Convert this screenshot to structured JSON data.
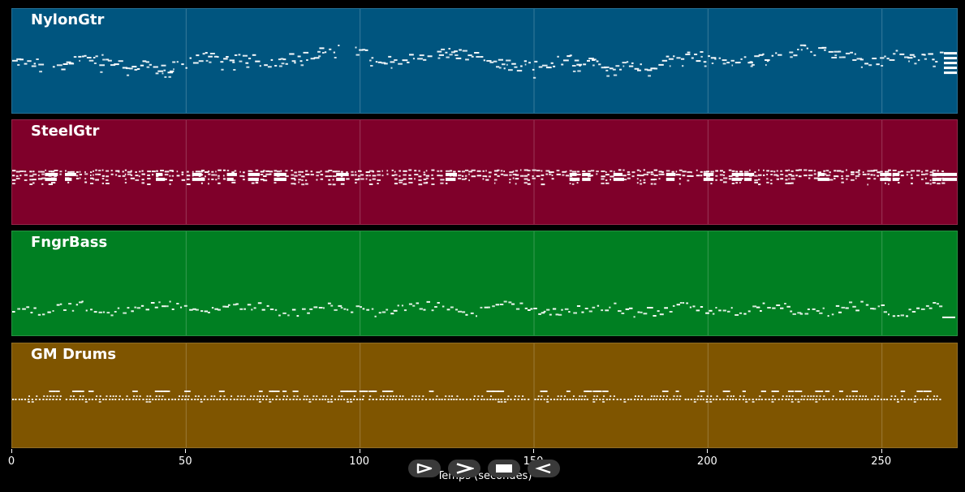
{
  "tracks": [
    {
      "name": "NylonGtr",
      "color": "#00557f",
      "pattern": "wavy-melody",
      "base_pitch": 0.47
    },
    {
      "name": "SteelGtr",
      "color": "#7f002a",
      "pattern": "dense-chords",
      "base_pitch": 0.53
    },
    {
      "name": "FngrBass",
      "color": "#007f22",
      "pattern": "bass-line",
      "base_pitch": 0.73
    },
    {
      "name": "GM Drums",
      "color": "#7f5500",
      "pattern": "drum-rows",
      "base_pitch": 0.5
    }
  ],
  "axis": {
    "label": "Temps (secondes)",
    "range": [
      0,
      272
    ],
    "ticks": [
      {
        "value": 0,
        "label": "0"
      },
      {
        "value": 50,
        "label": "50"
      },
      {
        "value": 100,
        "label": "100"
      },
      {
        "value": 150,
        "label": "150"
      },
      {
        "value": 200,
        "label": "200"
      },
      {
        "value": 250,
        "label": "250"
      }
    ],
    "grid": true
  },
  "transport": [
    {
      "id": "play",
      "icon": "play-icon"
    },
    {
      "id": "forward",
      "icon": "forward-chevron-icon"
    },
    {
      "id": "stop",
      "icon": "stop-icon"
    },
    {
      "id": "back",
      "icon": "back-chevron-icon"
    }
  ],
  "colors": {
    "background": "#000000",
    "note": "#ffffff",
    "button": "#3a3a3a"
  }
}
